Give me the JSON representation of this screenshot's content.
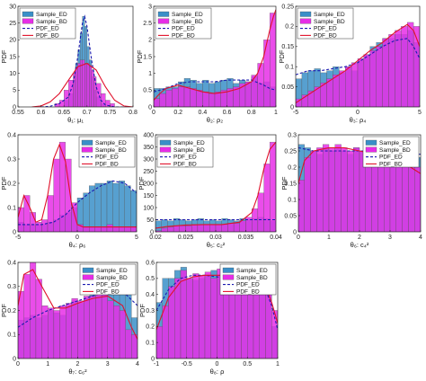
{
  "colors": {
    "ed": "#3a8fc8",
    "bd": "#e62ee6",
    "pdf_ed": "#1a1ab0",
    "pdf_bd": "#e0102a"
  },
  "chart_data": [
    {
      "type": "bar",
      "ylabel": "PDF",
      "xlabel": "θ₁: μ₁",
      "xlim": [
        0.55,
        0.8
      ],
      "ylim": [
        0,
        30
      ],
      "xticks": [
        "0.55",
        "0.6",
        "0.65",
        "0.7",
        "0.75",
        "0.8"
      ],
      "yticks": [
        "0",
        "5",
        "10",
        "15",
        "20",
        "25",
        "30"
      ],
      "legend": [
        "Sample_ED",
        "Sample_BD",
        "PDF_ED",
        "PDF_BD"
      ],
      "legend_position": "top-left",
      "bins": [
        0.62,
        0.63,
        0.64,
        0.65,
        0.66,
        0.67,
        0.675,
        0.68,
        0.685,
        0.69,
        0.695,
        0.7,
        0.705,
        0.71,
        0.715,
        0.72,
        0.73,
        0.74,
        0.75,
        0.76
      ],
      "ed": [
        0,
        0,
        0,
        2,
        4,
        8,
        13,
        17,
        22,
        27,
        24,
        18,
        14,
        9,
        5,
        3,
        1,
        0,
        0
      ],
      "bd": [
        0,
        1,
        2,
        5,
        8,
        10,
        12,
        13,
        14,
        14,
        13,
        13,
        12,
        11,
        9,
        7,
        4,
        2,
        1
      ],
      "pdf_ed": {
        "x": [
          0.6,
          0.62,
          0.64,
          0.66,
          0.67,
          0.68,
          0.69,
          0.695,
          0.7,
          0.71,
          0.72,
          0.73,
          0.74,
          0.76,
          0.8
        ],
        "y": [
          0,
          0.2,
          1,
          3,
          7,
          15,
          25,
          27,
          24,
          14,
          6,
          2,
          0.6,
          0,
          0
        ]
      },
      "pdf_bd": {
        "x": [
          0.58,
          0.6,
          0.62,
          0.64,
          0.66,
          0.68,
          0.7,
          0.72,
          0.74,
          0.76,
          0.78,
          0.8
        ],
        "y": [
          0,
          0.3,
          1.5,
          4,
          8,
          12,
          13,
          11,
          6,
          2,
          0.3,
          0
        ]
      }
    },
    {
      "type": "bar",
      "ylabel": "PDF",
      "xlabel": "θ₂: ρ₂",
      "xlim": [
        0,
        1
      ],
      "ylim": [
        0,
        3
      ],
      "xticks": [
        "0",
        "0.2",
        "0.4",
        "0.6",
        "0.8",
        "1"
      ],
      "yticks": [
        "0",
        "0.5",
        "1",
        "1.5",
        "2",
        "2.5",
        "3"
      ],
      "legend": [
        "Sample_ED",
        "Sample_BD",
        "PDF_ED",
        "PDF_BD"
      ],
      "legend_position": "top-left",
      "bins": [
        0,
        0.05,
        0.1,
        0.15,
        0.2,
        0.25,
        0.3,
        0.35,
        0.4,
        0.45,
        0.5,
        0.55,
        0.6,
        0.65,
        0.7,
        0.75,
        0.8,
        0.85,
        0.9,
        0.95,
        1.0
      ],
      "ed": [
        0.55,
        0.55,
        0.6,
        0.6,
        0.75,
        0.85,
        0.8,
        0.7,
        0.8,
        0.7,
        0.75,
        0.8,
        0.85,
        0.7,
        0.8,
        0.75,
        0.9,
        0.7,
        0.75,
        0.6
      ],
      "bd": [
        0.25,
        0.4,
        0.5,
        0.55,
        0.6,
        0.6,
        0.55,
        0.5,
        0.45,
        0.4,
        0.45,
        0.5,
        0.55,
        0.6,
        0.7,
        0.75,
        0.95,
        1.3,
        2.0,
        2.8
      ],
      "pdf_ed": {
        "x": [
          0,
          0.1,
          0.2,
          0.3,
          0.4,
          0.5,
          0.6,
          0.7,
          0.8,
          0.9,
          0.95,
          1.0
        ],
        "y": [
          0.45,
          0.55,
          0.7,
          0.75,
          0.75,
          0.75,
          0.8,
          0.8,
          0.8,
          0.65,
          0.55,
          0.5
        ]
      },
      "pdf_bd": {
        "x": [
          0,
          0.05,
          0.1,
          0.2,
          0.3,
          0.4,
          0.5,
          0.6,
          0.7,
          0.8,
          0.85,
          0.9,
          0.95,
          0.98,
          1.0
        ],
        "y": [
          0.2,
          0.4,
          0.55,
          0.65,
          0.55,
          0.45,
          0.4,
          0.45,
          0.55,
          0.75,
          1.0,
          1.5,
          2.3,
          2.7,
          2.9
        ]
      }
    },
    {
      "type": "bar",
      "ylabel": "PDF",
      "xlabel": "θ₃: ρ₄",
      "xlim": [
        -5,
        5
      ],
      "ylim": [
        0,
        0.25
      ],
      "xticks": [
        "-5",
        "0",
        "5"
      ],
      "yticks": [
        "0",
        "0.05",
        "0.1",
        "0.15",
        "0.2",
        "0.25"
      ],
      "legend": [
        "Sample_ED",
        "Sample_BD",
        "PDF_ED",
        "PDF_BD"
      ],
      "legend_position": "top-left",
      "bins": [
        -5,
        -4.5,
        -4,
        -3.5,
        -3,
        -2.5,
        -2,
        -1.5,
        -1,
        -0.5,
        0,
        0.5,
        1,
        1.5,
        2,
        2.5,
        3,
        3.5,
        4,
        4.5,
        5
      ],
      "ed": [
        0.07,
        0.085,
        0.09,
        0.095,
        0.085,
        0.09,
        0.1,
        0.085,
        0.1,
        0.09,
        0.115,
        0.13,
        0.15,
        0.16,
        0.17,
        0.17,
        0.18,
        0.18,
        0.19,
        0.16
      ],
      "bd": [
        0.02,
        0.03,
        0.04,
        0.05,
        0.06,
        0.07,
        0.08,
        0.09,
        0.1,
        0.11,
        0.12,
        0.13,
        0.14,
        0.15,
        0.17,
        0.18,
        0.19,
        0.2,
        0.21,
        0.2
      ],
      "pdf_ed": {
        "x": [
          -5,
          -4,
          -3,
          -2,
          -1,
          0,
          1,
          2,
          3,
          4,
          4.5,
          5
        ],
        "y": [
          0.08,
          0.09,
          0.09,
          0.095,
          0.1,
          0.11,
          0.13,
          0.15,
          0.165,
          0.17,
          0.15,
          0.12
        ]
      },
      "pdf_bd": {
        "x": [
          -5,
          -4,
          -3,
          -2,
          -1,
          0,
          1,
          2,
          3,
          4,
          4.5,
          5
        ],
        "y": [
          0.01,
          0.03,
          0.05,
          0.07,
          0.09,
          0.115,
          0.14,
          0.16,
          0.185,
          0.205,
          0.19,
          0.15
        ]
      }
    },
    {
      "type": "bar",
      "ylabel": "PDF",
      "xlabel": "θ₄: ρ₆",
      "xlim": [
        -5,
        5
      ],
      "ylim": [
        0,
        0.4
      ],
      "xticks": [
        "-5",
        "0",
        "5"
      ],
      "yticks": [
        "0",
        "0.1",
        "0.2",
        "0.3",
        "0.4"
      ],
      "legend": [
        "Sample_ED",
        "Sample_BD",
        "PDF_ED",
        "PDF_BD"
      ],
      "legend_position": "top-right",
      "bins": [
        -5,
        -4.5,
        -4,
        -3.5,
        -3,
        -2.5,
        -2,
        -1.5,
        -1,
        -0.5,
        0,
        0.5,
        1,
        1.5,
        2,
        2.5,
        3,
        3.5,
        4,
        4.5,
        5
      ],
      "ed": [
        0.04,
        0.03,
        0.03,
        0.03,
        0.03,
        0.04,
        0.05,
        0.07,
        0.08,
        0.1,
        0.14,
        0.16,
        0.19,
        0.2,
        0.2,
        0.21,
        0.2,
        0.21,
        0.19,
        0.17
      ],
      "bd": [
        0.1,
        0.15,
        0.08,
        0.04,
        0.05,
        0.15,
        0.3,
        0.37,
        0.3,
        0.12,
        0.03,
        0.02,
        0.02,
        0.02,
        0.02,
        0.03,
        0.02,
        0.02,
        0.02,
        0.02
      ],
      "pdf_ed": {
        "x": [
          -5,
          -4,
          -3,
          -2,
          -1,
          0,
          1,
          2,
          3,
          4,
          5
        ],
        "y": [
          0.03,
          0.03,
          0.03,
          0.04,
          0.07,
          0.12,
          0.16,
          0.19,
          0.21,
          0.2,
          0.16
        ]
      },
      "pdf_bd": {
        "x": [
          -5,
          -4.5,
          -4,
          -3.5,
          -3,
          -2.5,
          -2,
          -1.5,
          -1,
          -0.5,
          0,
          0.5,
          1,
          2,
          3,
          4,
          5
        ],
        "y": [
          0.06,
          0.15,
          0.1,
          0.04,
          0.05,
          0.15,
          0.3,
          0.36,
          0.29,
          0.12,
          0.03,
          0.02,
          0.02,
          0.02,
          0.02,
          0.02,
          0.02
        ]
      }
    },
    {
      "type": "bar",
      "ylabel": "PDF",
      "xlabel": "θ₅: c₂²",
      "xlim": [
        0.02,
        0.04
      ],
      "ylim": [
        0,
        400
      ],
      "xticks": [
        "0.02",
        "0.025",
        "0.03",
        "0.035",
        "0.04"
      ],
      "yticks": [
        "0",
        "50",
        "100",
        "150",
        "200",
        "250",
        "300",
        "350",
        "400"
      ],
      "legend": [
        "Sample_ED",
        "Sample_BD",
        "PDF_ED",
        "PDF_BD"
      ],
      "legend_position": "top-left",
      "bins": [
        0.02,
        0.021,
        0.022,
        0.023,
        0.024,
        0.025,
        0.026,
        0.027,
        0.028,
        0.029,
        0.03,
        0.031,
        0.032,
        0.033,
        0.034,
        0.035,
        0.036,
        0.037,
        0.038,
        0.039,
        0.04
      ],
      "ed": [
        45,
        50,
        45,
        55,
        50,
        45,
        50,
        55,
        45,
        50,
        45,
        55,
        50,
        45,
        55,
        50,
        55,
        60,
        55,
        45
      ],
      "bd": [
        5,
        15,
        20,
        25,
        25,
        25,
        30,
        30,
        30,
        30,
        30,
        30,
        35,
        35,
        45,
        60,
        95,
        160,
        280,
        370
      ],
      "pdf_ed": {
        "x": [
          0.02,
          0.025,
          0.03,
          0.035,
          0.04
        ],
        "y": [
          50,
          50,
          50,
          50,
          50
        ]
      },
      "pdf_bd": {
        "x": [
          0.02,
          0.022,
          0.025,
          0.028,
          0.031,
          0.034,
          0.036,
          0.037,
          0.038,
          0.039,
          0.04
        ],
        "y": [
          15,
          22,
          28,
          30,
          30,
          40,
          80,
          150,
          260,
          340,
          370
        ]
      }
    },
    {
      "type": "bar",
      "ylabel": "PDF",
      "xlabel": "θ₆: c₄²",
      "xlim": [
        0,
        4
      ],
      "ylim": [
        0,
        0.3
      ],
      "xticks": [
        "0",
        "1",
        "2",
        "3",
        "4"
      ],
      "yticks": [
        "0",
        "0.05",
        "0.1",
        "0.15",
        "0.2",
        "0.25",
        "0.3"
      ],
      "legend": [
        "Sample_ED",
        "Sample_BD",
        "PDF_ED",
        "PDF_BD"
      ],
      "legend_position": "top-right",
      "bins": [
        0,
        0.2,
        0.4,
        0.6,
        0.8,
        1.0,
        1.2,
        1.4,
        1.6,
        1.8,
        2.0,
        2.2,
        2.4,
        2.6,
        2.8,
        3.0,
        3.2,
        3.4,
        3.6,
        3.8,
        4.0
      ],
      "ed": [
        0.27,
        0.26,
        0.25,
        0.24,
        0.26,
        0.25,
        0.26,
        0.25,
        0.24,
        0.26,
        0.25,
        0.26,
        0.24,
        0.26,
        0.24,
        0.25,
        0.23,
        0.25,
        0.24,
        0.23
      ],
      "bd": [
        0.16,
        0.23,
        0.25,
        0.26,
        0.27,
        0.26,
        0.27,
        0.26,
        0.25,
        0.26,
        0.25,
        0.25,
        0.24,
        0.25,
        0.23,
        0.24,
        0.22,
        0.21,
        0.2,
        0.2
      ],
      "pdf_ed": {
        "x": [
          0,
          0.5,
          1,
          1.5,
          2,
          2.5,
          3,
          3.5,
          4
        ],
        "y": [
          0.26,
          0.25,
          0.25,
          0.25,
          0.25,
          0.25,
          0.24,
          0.24,
          0.24
        ]
      },
      "pdf_bd": {
        "x": [
          0,
          0.2,
          0.5,
          1,
          1.5,
          2,
          2.5,
          3,
          3.5,
          4
        ],
        "y": [
          0.15,
          0.22,
          0.25,
          0.26,
          0.26,
          0.25,
          0.24,
          0.23,
          0.21,
          0.18
        ]
      }
    },
    {
      "type": "bar",
      "ylabel": "PDF",
      "xlabel": "θ₇: c₆²",
      "xlim": [
        0,
        4
      ],
      "ylim": [
        0,
        0.4
      ],
      "xticks": [
        "0",
        "1",
        "2",
        "3",
        "4"
      ],
      "yticks": [
        "0",
        "0.1",
        "0.2",
        "0.3",
        "0.4"
      ],
      "legend": [
        "Sample_ED",
        "Sample_BD",
        "PDF_ED",
        "PDF_BD"
      ],
      "legend_position": "top-right",
      "bins": [
        0,
        0.2,
        0.4,
        0.6,
        0.8,
        1.0,
        1.2,
        1.4,
        1.6,
        1.8,
        2.0,
        2.2,
        2.4,
        2.6,
        2.8,
        3.0,
        3.2,
        3.4,
        3.6,
        3.8,
        4.0
      ],
      "ed": [
        0.16,
        0.17,
        0.18,
        0.17,
        0.18,
        0.2,
        0.19,
        0.18,
        0.22,
        0.24,
        0.23,
        0.25,
        0.28,
        0.26,
        0.28,
        0.29,
        0.3,
        0.3,
        0.31,
        0.17
      ],
      "bd": [
        0.28,
        0.35,
        0.4,
        0.33,
        0.22,
        0.21,
        0.2,
        0.22,
        0.23,
        0.25,
        0.24,
        0.26,
        0.26,
        0.27,
        0.27,
        0.24,
        0.22,
        0.2,
        0.12,
        0.1
      ],
      "pdf_ed": {
        "x": [
          0,
          0.5,
          1,
          1.5,
          2,
          2.5,
          3,
          3.5,
          4
        ],
        "y": [
          0.13,
          0.17,
          0.2,
          0.22,
          0.24,
          0.26,
          0.28,
          0.28,
          0.22
        ]
      },
      "pdf_bd": {
        "x": [
          0,
          0.2,
          0.5,
          0.8,
          1.2,
          1.6,
          2,
          2.5,
          3,
          3.5,
          3.8,
          4
        ],
        "y": [
          0.22,
          0.35,
          0.37,
          0.3,
          0.21,
          0.21,
          0.23,
          0.25,
          0.26,
          0.22,
          0.13,
          0.08
        ]
      }
    },
    {
      "type": "bar",
      "ylabel": "PDF",
      "xlabel": "θ₈: ρ",
      "xlim": [
        -1,
        1
      ],
      "ylim": [
        0,
        0.6
      ],
      "xticks": [
        "-1",
        "-0.5",
        "0",
        "0.5",
        "1"
      ],
      "yticks": [
        "0",
        "0.1",
        "0.2",
        "0.3",
        "0.4",
        "0.5",
        "0.6"
      ],
      "legend": [
        "Sample_ED",
        "Sample_BD",
        "PDF_ED",
        "PDF_BD"
      ],
      "legend_position": "top-right",
      "bins": [
        -1,
        -0.9,
        -0.8,
        -0.7,
        -0.6,
        -0.5,
        -0.4,
        -0.3,
        -0.2,
        -0.1,
        0,
        0.1,
        0.2,
        0.3,
        0.4,
        0.5,
        0.6,
        0.7,
        0.8,
        0.9,
        1.0
      ],
      "ed": [
        0.35,
        0.5,
        0.5,
        0.55,
        0.57,
        0.5,
        0.49,
        0.5,
        0.52,
        0.55,
        0.52,
        0.5,
        0.49,
        0.48,
        0.5,
        0.49,
        0.46,
        0.5,
        0.4,
        0.2
      ],
      "bd": [
        0.2,
        0.33,
        0.45,
        0.5,
        0.55,
        0.5,
        0.53,
        0.52,
        0.54,
        0.5,
        0.56,
        0.52,
        0.5,
        0.54,
        0.5,
        0.53,
        0.5,
        0.48,
        0.4,
        0.3
      ],
      "pdf_ed": {
        "x": [
          -1,
          -0.8,
          -0.6,
          -0.4,
          -0.2,
          0,
          0.2,
          0.4,
          0.6,
          0.8,
          0.9,
          1
        ],
        "y": [
          0.3,
          0.43,
          0.5,
          0.52,
          0.52,
          0.51,
          0.5,
          0.49,
          0.48,
          0.43,
          0.33,
          0.18
        ]
      },
      "pdf_bd": {
        "x": [
          -1,
          -0.8,
          -0.6,
          -0.4,
          -0.2,
          0,
          0.2,
          0.4,
          0.6,
          0.8,
          0.9,
          1
        ],
        "y": [
          0.18,
          0.38,
          0.48,
          0.51,
          0.52,
          0.52,
          0.52,
          0.51,
          0.5,
          0.45,
          0.35,
          0.22
        ]
      }
    }
  ]
}
